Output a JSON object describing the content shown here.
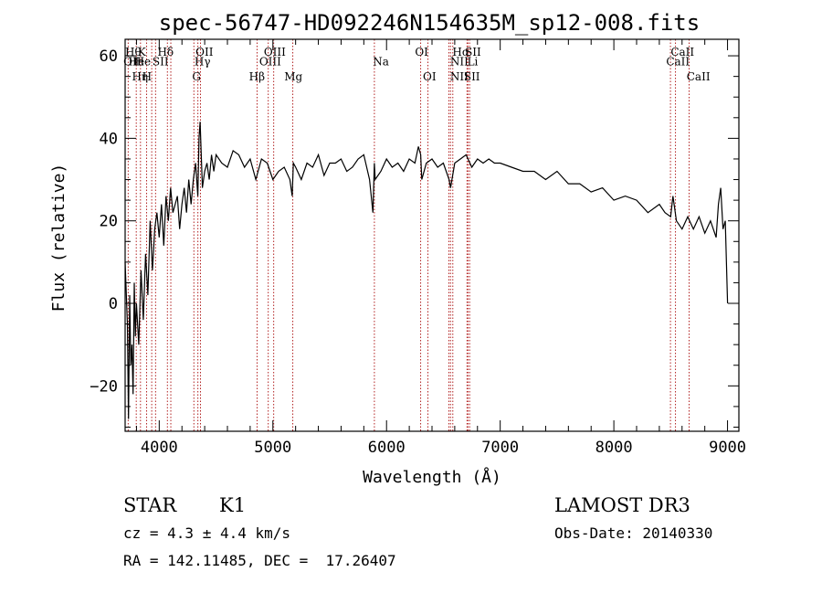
{
  "chart_data": {
    "type": "line",
    "title": "spec-56747-HD092246N154635M_sp12-008.fits",
    "xlabel": "Wavelength (Å)",
    "ylabel": "Flux (relative)",
    "xlim": [
      3700,
      9100
    ],
    "ylim": [
      -31,
      64
    ],
    "x_ticks": [
      4000,
      5000,
      6000,
      7000,
      8000,
      9000
    ],
    "x_tick_labels": [
      "4000",
      "5000",
      "6000",
      "7000",
      "8000",
      "9000"
    ],
    "y_ticks": [
      -20,
      0,
      20,
      40,
      60
    ],
    "y_tick_labels": [
      "−20",
      "0",
      "20",
      "40",
      "60"
    ],
    "series": [
      {
        "name": "flux",
        "x": [
          3700,
          3720,
          3730,
          3740,
          3750,
          3760,
          3770,
          3780,
          3790,
          3800,
          3820,
          3840,
          3860,
          3880,
          3900,
          3920,
          3940,
          3960,
          3980,
          4000,
          4020,
          4040,
          4060,
          4080,
          4100,
          4120,
          4140,
          4160,
          4180,
          4200,
          4220,
          4240,
          4260,
          4280,
          4300,
          4320,
          4340,
          4350,
          4360,
          4380,
          4400,
          4420,
          4440,
          4460,
          4480,
          4500,
          4550,
          4600,
          4650,
          4700,
          4750,
          4800,
          4850,
          4900,
          4950,
          5000,
          5050,
          5100,
          5150,
          5170,
          5180,
          5200,
          5250,
          5300,
          5350,
          5400,
          5450,
          5500,
          5550,
          5600,
          5650,
          5700,
          5750,
          5800,
          5850,
          5880,
          5893,
          5900,
          5950,
          6000,
          6050,
          6100,
          6150,
          6200,
          6250,
          6280,
          6300,
          6310,
          6350,
          6400,
          6450,
          6500,
          6550,
          6563,
          6600,
          6650,
          6700,
          6750,
          6800,
          6850,
          6900,
          6950,
          7000,
          7100,
          7200,
          7300,
          7400,
          7500,
          7600,
          7700,
          7800,
          7900,
          8000,
          8100,
          8200,
          8300,
          8400,
          8450,
          8500,
          8520,
          8550,
          8600,
          8650,
          8700,
          8750,
          8800,
          8850,
          8900,
          8920,
          8940,
          8960,
          8980,
          9000
        ],
        "y": [
          10,
          -5,
          -28,
          2,
          -15,
          -10,
          -22,
          5,
          -8,
          0,
          -10,
          8,
          -4,
          12,
          2,
          20,
          8,
          18,
          22,
          16,
          24,
          14,
          26,
          20,
          28,
          22,
          24,
          26,
          18,
          24,
          28,
          22,
          30,
          24,
          30,
          34,
          26,
          40,
          44,
          28,
          32,
          34,
          30,
          36,
          32,
          36,
          34,
          33,
          37,
          36,
          33,
          35,
          30,
          35,
          34,
          30,
          32,
          33,
          30,
          26,
          34,
          33,
          30,
          34,
          33,
          36,
          31,
          34,
          34,
          35,
          32,
          33,
          35,
          36,
          30,
          22,
          34,
          30,
          32,
          35,
          33,
          34,
          32,
          35,
          34,
          38,
          36,
          30,
          34,
          35,
          33,
          34,
          30,
          28,
          34,
          35,
          36,
          33,
          35,
          34,
          35,
          34,
          34,
          33,
          32,
          32,
          30,
          32,
          29,
          29,
          27,
          28,
          25,
          26,
          25,
          22,
          24,
          22,
          21,
          26,
          20,
          18,
          21,
          18,
          21,
          17,
          20,
          16,
          24,
          28,
          18,
          20,
          0
        ]
      }
    ],
    "lines": [
      {
        "name": "Hθ",
        "x": 3798
      },
      {
        "name": "OII",
        "x": 3727
      },
      {
        "name": "Hη",
        "x": 3835
      },
      {
        "name": "K",
        "x": 3934
      },
      {
        "name": "He",
        "x": 3889
      },
      {
        "name": "H",
        "x": 3968
      },
      {
        "name": "Hδ",
        "x": 4102
      },
      {
        "name": "SII",
        "x": 4072
      },
      {
        "name": "OIII",
        "x": 4363
      },
      {
        "name": "Hγ",
        "x": 4340
      },
      {
        "name": "G",
        "x": 4305
      },
      {
        "name": "Hβ",
        "x": 4861
      },
      {
        "name": "OIII",
        "x": 4959
      },
      {
        "name": "OIII",
        "x": 5007
      },
      {
        "name": "Mg",
        "x": 5175
      },
      {
        "name": "Na",
        "x": 5893
      },
      {
        "name": "OI",
        "x": 6300
      },
      {
        "name": "OI",
        "x": 6364
      },
      {
        "name": "Hα",
        "x": 6563
      },
      {
        "name": "NII",
        "x": 6548
      },
      {
        "name": "NII",
        "x": 6583
      },
      {
        "name": "SII",
        "x": 6716
      },
      {
        "name": "SII",
        "x": 6731
      },
      {
        "name": "Li",
        "x": 6708
      },
      {
        "name": "CaII",
        "x": 8498
      },
      {
        "name": "CaII",
        "x": 8542
      },
      {
        "name": "CaII",
        "x": 8662
      }
    ],
    "line_labels": [
      {
        "text": "Hθ",
        "x": 3700,
        "y": 60.5
      },
      {
        "text": "OII",
        "x": 3685,
        "y": 64
      },
      {
        "text": "He",
        "x": 3728,
        "y": 64
      },
      {
        "text": "Hη",
        "x": 3760,
        "y": 69.5
      },
      {
        "text": "K",
        "x": 3810,
        "y": 60.5
      },
      {
        "text": "He",
        "x": 3785,
        "y": 64
      },
      {
        "text": "H",
        "x": 3850,
        "y": 69.5
      },
      {
        "text": "Hδ",
        "x": 3985,
        "y": 60.5
      },
      {
        "text": "SII",
        "x": 3940,
        "y": 64
      },
      {
        "text": "OII",
        "x": 4320,
        "y": 60.5
      },
      {
        "text": "Hγ",
        "x": 4310,
        "y": 64
      },
      {
        "text": "G",
        "x": 4290,
        "y": 69.5
      },
      {
        "text": "OIII",
        "x": 4920,
        "y": 60.5
      },
      {
        "text": "OIII",
        "x": 4880,
        "y": 64
      },
      {
        "text": "Hβ",
        "x": 4790,
        "y": 69.5
      },
      {
        "text": "Mg",
        "x": 5100,
        "y": 69.5
      },
      {
        "text": "Na",
        "x": 5880,
        "y": 64
      },
      {
        "text": "OI",
        "x": 6250,
        "y": 60.5
      },
      {
        "text": "OI",
        "x": 6320,
        "y": 69.5
      },
      {
        "text": "Hα",
        "x": 6580,
        "y": 60.5
      },
      {
        "text": "SII",
        "x": 6690,
        "y": 60.5
      },
      {
        "text": "NII",
        "x": 6560,
        "y": 64
      },
      {
        "text": "Li",
        "x": 6710,
        "y": 64
      },
      {
        "text": "NII",
        "x": 6560,
        "y": 69.5
      },
      {
        "text": "SII",
        "x": 6680,
        "y": 69.5
      },
      {
        "text": "CaII",
        "x": 8500,
        "y": 60.5
      },
      {
        "text": "CaII",
        "x": 8460,
        "y": 64
      },
      {
        "text": "CaII",
        "x": 8640,
        "y": 69.5
      }
    ]
  },
  "info": {
    "object_class": "STAR",
    "subclass": "K1",
    "survey": "LAMOST DR3",
    "cz": "cz = 4.3 ± 4.4 km/s",
    "obs_date": "Obs-Date: 20140330",
    "coords": "RA = 142.11485, DEC =  17.26407"
  },
  "colors": {
    "line_marker": "#b22222",
    "spectrum": "#000000",
    "background": "#ffffff"
  }
}
